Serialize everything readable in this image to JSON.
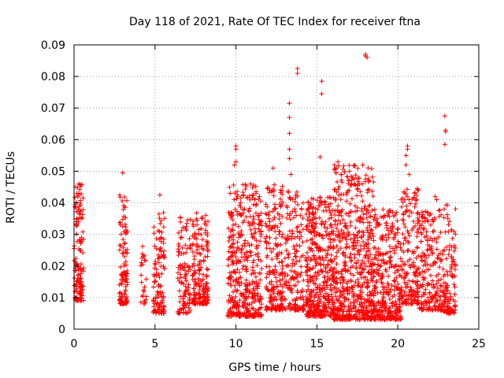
{
  "chart_data": {
    "type": "scatter",
    "title": "Day 118 of 2021, Rate Of TEC Index for receiver ftna",
    "xlabel": "GPS time / hours",
    "ylabel": "ROTI / TECUs",
    "xlim": [
      0,
      25
    ],
    "ylim": [
      0,
      0.09
    ],
    "xticks": [
      "0",
      "5",
      "10",
      "15",
      "20",
      "25"
    ],
    "yticks": [
      "0",
      "0.01",
      "0.02",
      "0.03",
      "0.04",
      "0.05",
      "0.06",
      "0.07",
      "0.08",
      "0.09"
    ],
    "xtick_values": [
      0,
      5,
      10,
      15,
      20,
      25
    ],
    "ytick_values": [
      0,
      0.01,
      0.02,
      0.03,
      0.04,
      0.05,
      0.06,
      0.07,
      0.08,
      0.09
    ],
    "grid": true,
    "marker": "plus",
    "color": "#ff0000",
    "clusters": [
      {
        "x": [
          0.0,
          0.6
        ],
        "ymin": 0.009,
        "ymax": 0.046,
        "n": 140
      },
      {
        "x": [
          2.8,
          3.3
        ],
        "ymin": 0.008,
        "ymax": 0.043,
        "n": 110
      },
      {
        "x": [
          4.1,
          4.5
        ],
        "ymin": 0.008,
        "ymax": 0.027,
        "n": 25
      },
      {
        "x": [
          4.9,
          5.6
        ],
        "ymin": 0.005,
        "ymax": 0.037,
        "n": 120
      },
      {
        "x": [
          6.4,
          7.2
        ],
        "ymin": 0.005,
        "ymax": 0.037,
        "n": 110
      },
      {
        "x": [
          7.3,
          8.3
        ],
        "ymin": 0.008,
        "ymax": 0.037,
        "n": 190
      },
      {
        "x": [
          9.5,
          11.6
        ],
        "ymin": 0.004,
        "ymax": 0.046,
        "n": 420
      },
      {
        "x": [
          11.8,
          12.9
        ],
        "ymin": 0.006,
        "ymax": 0.046,
        "n": 200
      },
      {
        "x": [
          13.0,
          14.2
        ],
        "ymin": 0.006,
        "ymax": 0.044,
        "n": 170
      },
      {
        "x": [
          14.3,
          16.0
        ],
        "ymin": 0.004,
        "ymax": 0.042,
        "n": 420
      },
      {
        "x": [
          16.0,
          18.5
        ],
        "ymin": 0.003,
        "ymax": 0.052,
        "n": 620
      },
      {
        "x": [
          18.5,
          20.2
        ],
        "ymin": 0.003,
        "ymax": 0.038,
        "n": 330
      },
      {
        "x": [
          20.2,
          21.3
        ],
        "ymin": 0.008,
        "ymax": 0.045,
        "n": 180
      },
      {
        "x": [
          21.3,
          22.8
        ],
        "ymin": 0.006,
        "ymax": 0.038,
        "n": 200
      },
      {
        "x": [
          22.8,
          23.6
        ],
        "ymin": 0.005,
        "ymax": 0.04,
        "n": 120
      }
    ],
    "outliers": [
      {
        "x": 0.1,
        "y": 0.045
      },
      {
        "x": 0.3,
        "y": 0.046
      },
      {
        "x": 3.0,
        "y": 0.0495
      },
      {
        "x": 5.3,
        "y": 0.0425
      },
      {
        "x": 10.0,
        "y": 0.058
      },
      {
        "x": 10.0,
        "y": 0.057
      },
      {
        "x": 10.0,
        "y": 0.053
      },
      {
        "x": 9.9,
        "y": 0.052
      },
      {
        "x": 12.3,
        "y": 0.051
      },
      {
        "x": 13.3,
        "y": 0.0715
      },
      {
        "x": 13.3,
        "y": 0.067
      },
      {
        "x": 13.3,
        "y": 0.062
      },
      {
        "x": 13.3,
        "y": 0.057
      },
      {
        "x": 13.3,
        "y": 0.054
      },
      {
        "x": 13.4,
        "y": 0.049
      },
      {
        "x": 13.8,
        "y": 0.0825
      },
      {
        "x": 13.8,
        "y": 0.081
      },
      {
        "x": 15.3,
        "y": 0.0785
      },
      {
        "x": 15.3,
        "y": 0.0745
      },
      {
        "x": 15.2,
        "y": 0.0545
      },
      {
        "x": 16.2,
        "y": 0.051
      },
      {
        "x": 16.3,
        "y": 0.053
      },
      {
        "x": 16.5,
        "y": 0.049
      },
      {
        "x": 17.2,
        "y": 0.048
      },
      {
        "x": 17.8,
        "y": 0.046
      },
      {
        "x": 18.0,
        "y": 0.087
      },
      {
        "x": 18.0,
        "y": 0.0865
      },
      {
        "x": 18.1,
        "y": 0.086
      },
      {
        "x": 20.6,
        "y": 0.058
      },
      {
        "x": 20.6,
        "y": 0.057
      },
      {
        "x": 20.5,
        "y": 0.055
      },
      {
        "x": 20.5,
        "y": 0.052
      },
      {
        "x": 20.7,
        "y": 0.049
      },
      {
        "x": 21.2,
        "y": 0.0445
      },
      {
        "x": 22.3,
        "y": 0.042
      },
      {
        "x": 22.4,
        "y": 0.041
      },
      {
        "x": 22.9,
        "y": 0.0675
      },
      {
        "x": 22.95,
        "y": 0.063
      },
      {
        "x": 22.95,
        "y": 0.0625
      },
      {
        "x": 22.9,
        "y": 0.0585
      },
      {
        "x": 19.2,
        "y": 0.003
      },
      {
        "x": 16.7,
        "y": 0.004
      },
      {
        "x": 10.6,
        "y": 0.004
      }
    ]
  }
}
